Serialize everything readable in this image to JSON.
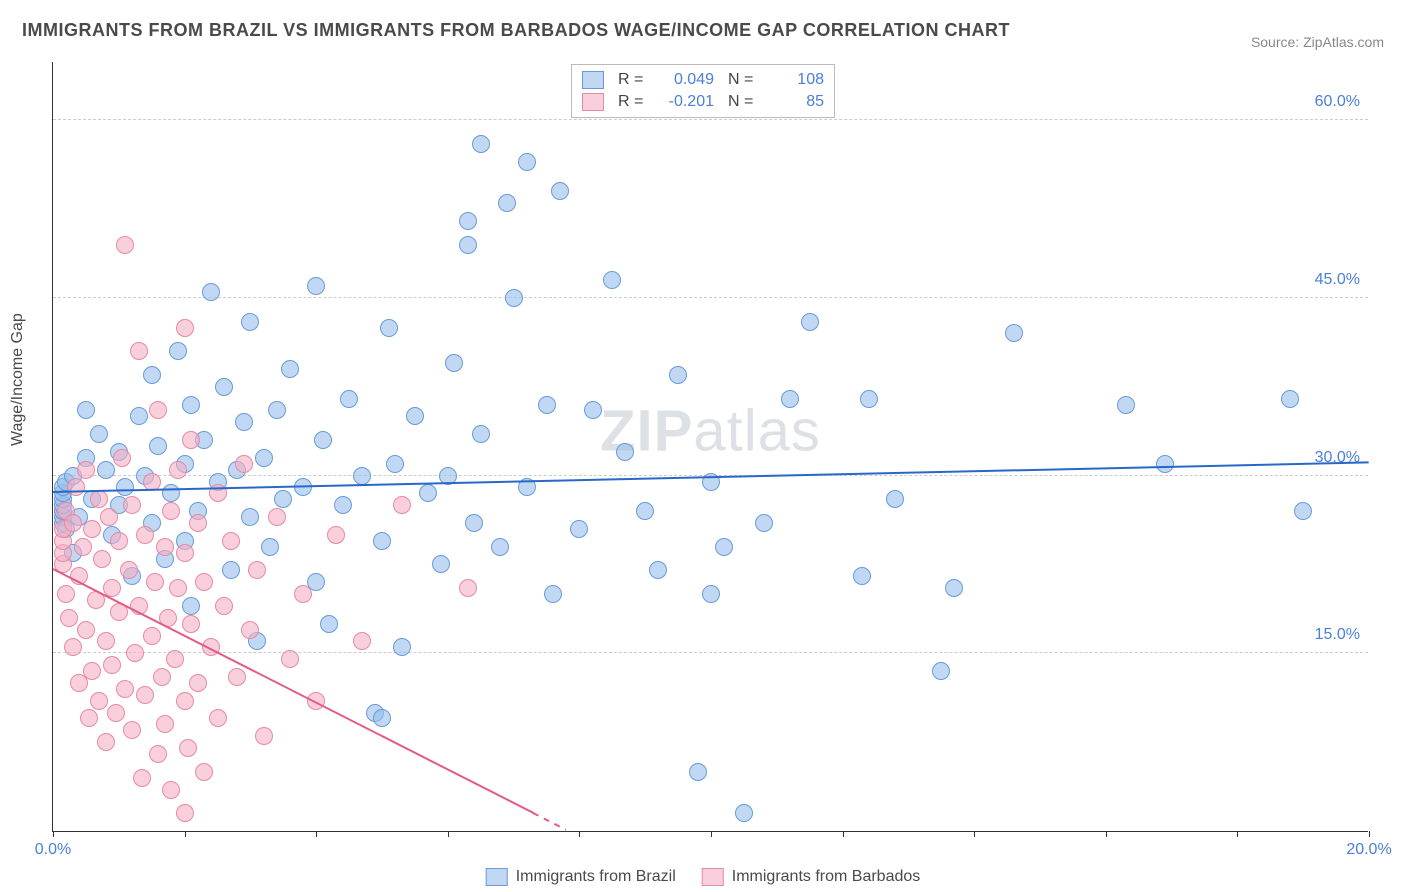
{
  "title": "IMMIGRANTS FROM BRAZIL VS IMMIGRANTS FROM BARBADOS WAGE/INCOME GAP CORRELATION CHART",
  "source": "Source: ZipAtlas.com",
  "ylabel": "Wage/Income Gap",
  "watermark_parts": [
    "ZIP",
    "atlas"
  ],
  "chart": {
    "type": "scatter",
    "xlim": [
      0,
      20
    ],
    "ylim": [
      0,
      65
    ],
    "yticks": [
      15,
      30,
      45,
      60
    ],
    "ytick_labels": [
      "15.0%",
      "30.0%",
      "45.0%",
      "60.0%"
    ],
    "xticks_minor": [
      0,
      2,
      4,
      6,
      8,
      10,
      12,
      14,
      16,
      18,
      20
    ],
    "xticks_labeled": [
      0,
      20
    ],
    "xtick_labels": [
      "0.0%",
      "20.0%"
    ],
    "background_color": "#ffffff",
    "grid_color": "#cccccc",
    "marker_radius": 9,
    "series": [
      {
        "name": "Immigrants from Brazil",
        "color_fill": "rgba(150,190,235,0.6)",
        "color_border": "#6a9bd8",
        "trend_color": "#2968c8",
        "R": "0.049",
        "N": "108",
        "trend": {
          "x0": 0,
          "y0": 28.5,
          "x1": 20,
          "y1": 31.0
        },
        "points": [
          [
            0.15,
            26.0
          ],
          [
            0.15,
            26.5
          ],
          [
            0.15,
            27.0
          ],
          [
            0.15,
            27.5
          ],
          [
            0.15,
            28.0
          ],
          [
            0.15,
            28.5
          ],
          [
            0.15,
            29.0
          ],
          [
            0.2,
            25.5
          ],
          [
            0.2,
            29.5
          ],
          [
            0.3,
            30.0
          ],
          [
            0.3,
            23.5
          ],
          [
            0.4,
            26.5
          ],
          [
            0.5,
            31.5
          ],
          [
            0.5,
            35.5
          ],
          [
            0.6,
            28.0
          ],
          [
            0.7,
            33.5
          ],
          [
            0.8,
            30.5
          ],
          [
            0.9,
            25.0
          ],
          [
            1.0,
            27.5
          ],
          [
            1.0,
            32.0
          ],
          [
            1.1,
            29.0
          ],
          [
            1.2,
            21.5
          ],
          [
            1.3,
            35.0
          ],
          [
            1.4,
            30.0
          ],
          [
            1.5,
            38.5
          ],
          [
            1.5,
            26.0
          ],
          [
            1.6,
            32.5
          ],
          [
            1.7,
            23.0
          ],
          [
            1.8,
            28.5
          ],
          [
            1.9,
            40.5
          ],
          [
            2.0,
            24.5
          ],
          [
            2.0,
            31.0
          ],
          [
            2.1,
            36.0
          ],
          [
            2.1,
            19.0
          ],
          [
            2.2,
            27.0
          ],
          [
            2.3,
            33.0
          ],
          [
            2.4,
            45.5
          ],
          [
            2.5,
            29.5
          ],
          [
            2.6,
            37.5
          ],
          [
            2.7,
            22.0
          ],
          [
            2.8,
            30.5
          ],
          [
            2.9,
            34.5
          ],
          [
            3.0,
            26.5
          ],
          [
            3.0,
            43.0
          ],
          [
            3.1,
            16.0
          ],
          [
            3.2,
            31.5
          ],
          [
            3.3,
            24.0
          ],
          [
            3.4,
            35.5
          ],
          [
            3.5,
            28.0
          ],
          [
            3.6,
            39.0
          ],
          [
            3.8,
            29.0
          ],
          [
            4.0,
            46.0
          ],
          [
            4.0,
            21.0
          ],
          [
            4.1,
            33.0
          ],
          [
            4.2,
            17.5
          ],
          [
            4.4,
            27.5
          ],
          [
            4.5,
            36.5
          ],
          [
            4.7,
            30.0
          ],
          [
            4.9,
            10.0
          ],
          [
            5.0,
            9.5
          ],
          [
            5.0,
            24.5
          ],
          [
            5.1,
            42.5
          ],
          [
            5.2,
            31.0
          ],
          [
            5.3,
            15.5
          ],
          [
            5.5,
            35.0
          ],
          [
            5.7,
            28.5
          ],
          [
            5.9,
            22.5
          ],
          [
            6.0,
            30.0
          ],
          [
            6.1,
            39.5
          ],
          [
            6.3,
            49.5
          ],
          [
            6.3,
            51.5
          ],
          [
            6.4,
            26.0
          ],
          [
            6.5,
            33.5
          ],
          [
            6.5,
            58.0
          ],
          [
            6.8,
            24.0
          ],
          [
            6.9,
            53.0
          ],
          [
            7.0,
            45.0
          ],
          [
            7.2,
            29.0
          ],
          [
            7.2,
            56.5
          ],
          [
            7.5,
            36.0
          ],
          [
            7.6,
            20.0
          ],
          [
            7.7,
            54.0
          ],
          [
            8.0,
            25.5
          ],
          [
            8.2,
            35.5
          ],
          [
            8.5,
            46.5
          ],
          [
            8.7,
            32.0
          ],
          [
            9.0,
            27.0
          ],
          [
            9.2,
            22.0
          ],
          [
            9.5,
            38.5
          ],
          [
            9.8,
            5.0
          ],
          [
            10.0,
            29.5
          ],
          [
            10.0,
            20.0
          ],
          [
            10.2,
            24.0
          ],
          [
            10.5,
            1.5
          ],
          [
            10.8,
            26.0
          ],
          [
            11.2,
            36.5
          ],
          [
            11.5,
            43.0
          ],
          [
            12.3,
            21.5
          ],
          [
            12.4,
            36.5
          ],
          [
            12.8,
            28.0
          ],
          [
            13.5,
            13.5
          ],
          [
            13.7,
            20.5
          ],
          [
            14.6,
            42.0
          ],
          [
            16.3,
            36.0
          ],
          [
            16.9,
            31.0
          ],
          [
            18.8,
            36.5
          ],
          [
            19.0,
            27.0
          ]
        ]
      },
      {
        "name": "Immigrants from Barbados",
        "color_fill": "rgba(245,175,195,0.6)",
        "color_border": "#e68aa5",
        "trend_color": "#e25a85",
        "R": "-0.201",
        "N": "85",
        "trend": {
          "x0": 0,
          "y0": 22.0,
          "x1": 7.8,
          "y1": 0.0,
          "dashed_after": 7.3
        },
        "points": [
          [
            0.15,
            22.5
          ],
          [
            0.15,
            23.5
          ],
          [
            0.15,
            24.5
          ],
          [
            0.15,
            25.5
          ],
          [
            0.2,
            20.0
          ],
          [
            0.2,
            27.0
          ],
          [
            0.25,
            18.0
          ],
          [
            0.3,
            26.0
          ],
          [
            0.3,
            15.5
          ],
          [
            0.35,
            29.0
          ],
          [
            0.4,
            12.5
          ],
          [
            0.4,
            21.5
          ],
          [
            0.45,
            24.0
          ],
          [
            0.5,
            30.5
          ],
          [
            0.5,
            17.0
          ],
          [
            0.55,
            9.5
          ],
          [
            0.6,
            25.5
          ],
          [
            0.6,
            13.5
          ],
          [
            0.65,
            19.5
          ],
          [
            0.7,
            28.0
          ],
          [
            0.7,
            11.0
          ],
          [
            0.75,
            23.0
          ],
          [
            0.8,
            16.0
          ],
          [
            0.8,
            7.5
          ],
          [
            0.85,
            26.5
          ],
          [
            0.9,
            20.5
          ],
          [
            0.9,
            14.0
          ],
          [
            0.95,
            10.0
          ],
          [
            1.0,
            24.5
          ],
          [
            1.0,
            18.5
          ],
          [
            1.05,
            31.5
          ],
          [
            1.1,
            12.0
          ],
          [
            1.1,
            49.5
          ],
          [
            1.15,
            22.0
          ],
          [
            1.2,
            27.5
          ],
          [
            1.2,
            8.5
          ],
          [
            1.25,
            15.0
          ],
          [
            1.3,
            40.5
          ],
          [
            1.3,
            19.0
          ],
          [
            1.35,
            4.5
          ],
          [
            1.4,
            25.0
          ],
          [
            1.4,
            11.5
          ],
          [
            1.5,
            29.5
          ],
          [
            1.5,
            16.5
          ],
          [
            1.55,
            21.0
          ],
          [
            1.6,
            6.5
          ],
          [
            1.6,
            35.5
          ],
          [
            1.65,
            13.0
          ],
          [
            1.7,
            24.0
          ],
          [
            1.7,
            9.0
          ],
          [
            1.75,
            18.0
          ],
          [
            1.8,
            27.0
          ],
          [
            1.8,
            3.5
          ],
          [
            1.85,
            14.5
          ],
          [
            1.9,
            20.5
          ],
          [
            1.9,
            30.5
          ],
          [
            2.0,
            11.0
          ],
          [
            2.0,
            23.5
          ],
          [
            2.0,
            42.5
          ],
          [
            2.0,
            1.5
          ],
          [
            2.05,
            7.0
          ],
          [
            2.1,
            17.5
          ],
          [
            2.1,
            33.0
          ],
          [
            2.2,
            26.0
          ],
          [
            2.2,
            12.5
          ],
          [
            2.3,
            21.0
          ],
          [
            2.3,
            5.0
          ],
          [
            2.4,
            15.5
          ],
          [
            2.5,
            28.5
          ],
          [
            2.5,
            9.5
          ],
          [
            2.6,
            19.0
          ],
          [
            2.7,
            24.5
          ],
          [
            2.8,
            13.0
          ],
          [
            2.9,
            31.0
          ],
          [
            3.0,
            17.0
          ],
          [
            3.1,
            22.0
          ],
          [
            3.2,
            8.0
          ],
          [
            3.4,
            26.5
          ],
          [
            3.6,
            14.5
          ],
          [
            3.8,
            20.0
          ],
          [
            4.0,
            11.0
          ],
          [
            4.3,
            25.0
          ],
          [
            4.7,
            16.0
          ],
          [
            5.3,
            27.5
          ],
          [
            6.3,
            20.5
          ]
        ]
      }
    ]
  },
  "legend_top_labels": {
    "R": "R =",
    "N": "N ="
  },
  "legend_bottom_marker_size": 18
}
